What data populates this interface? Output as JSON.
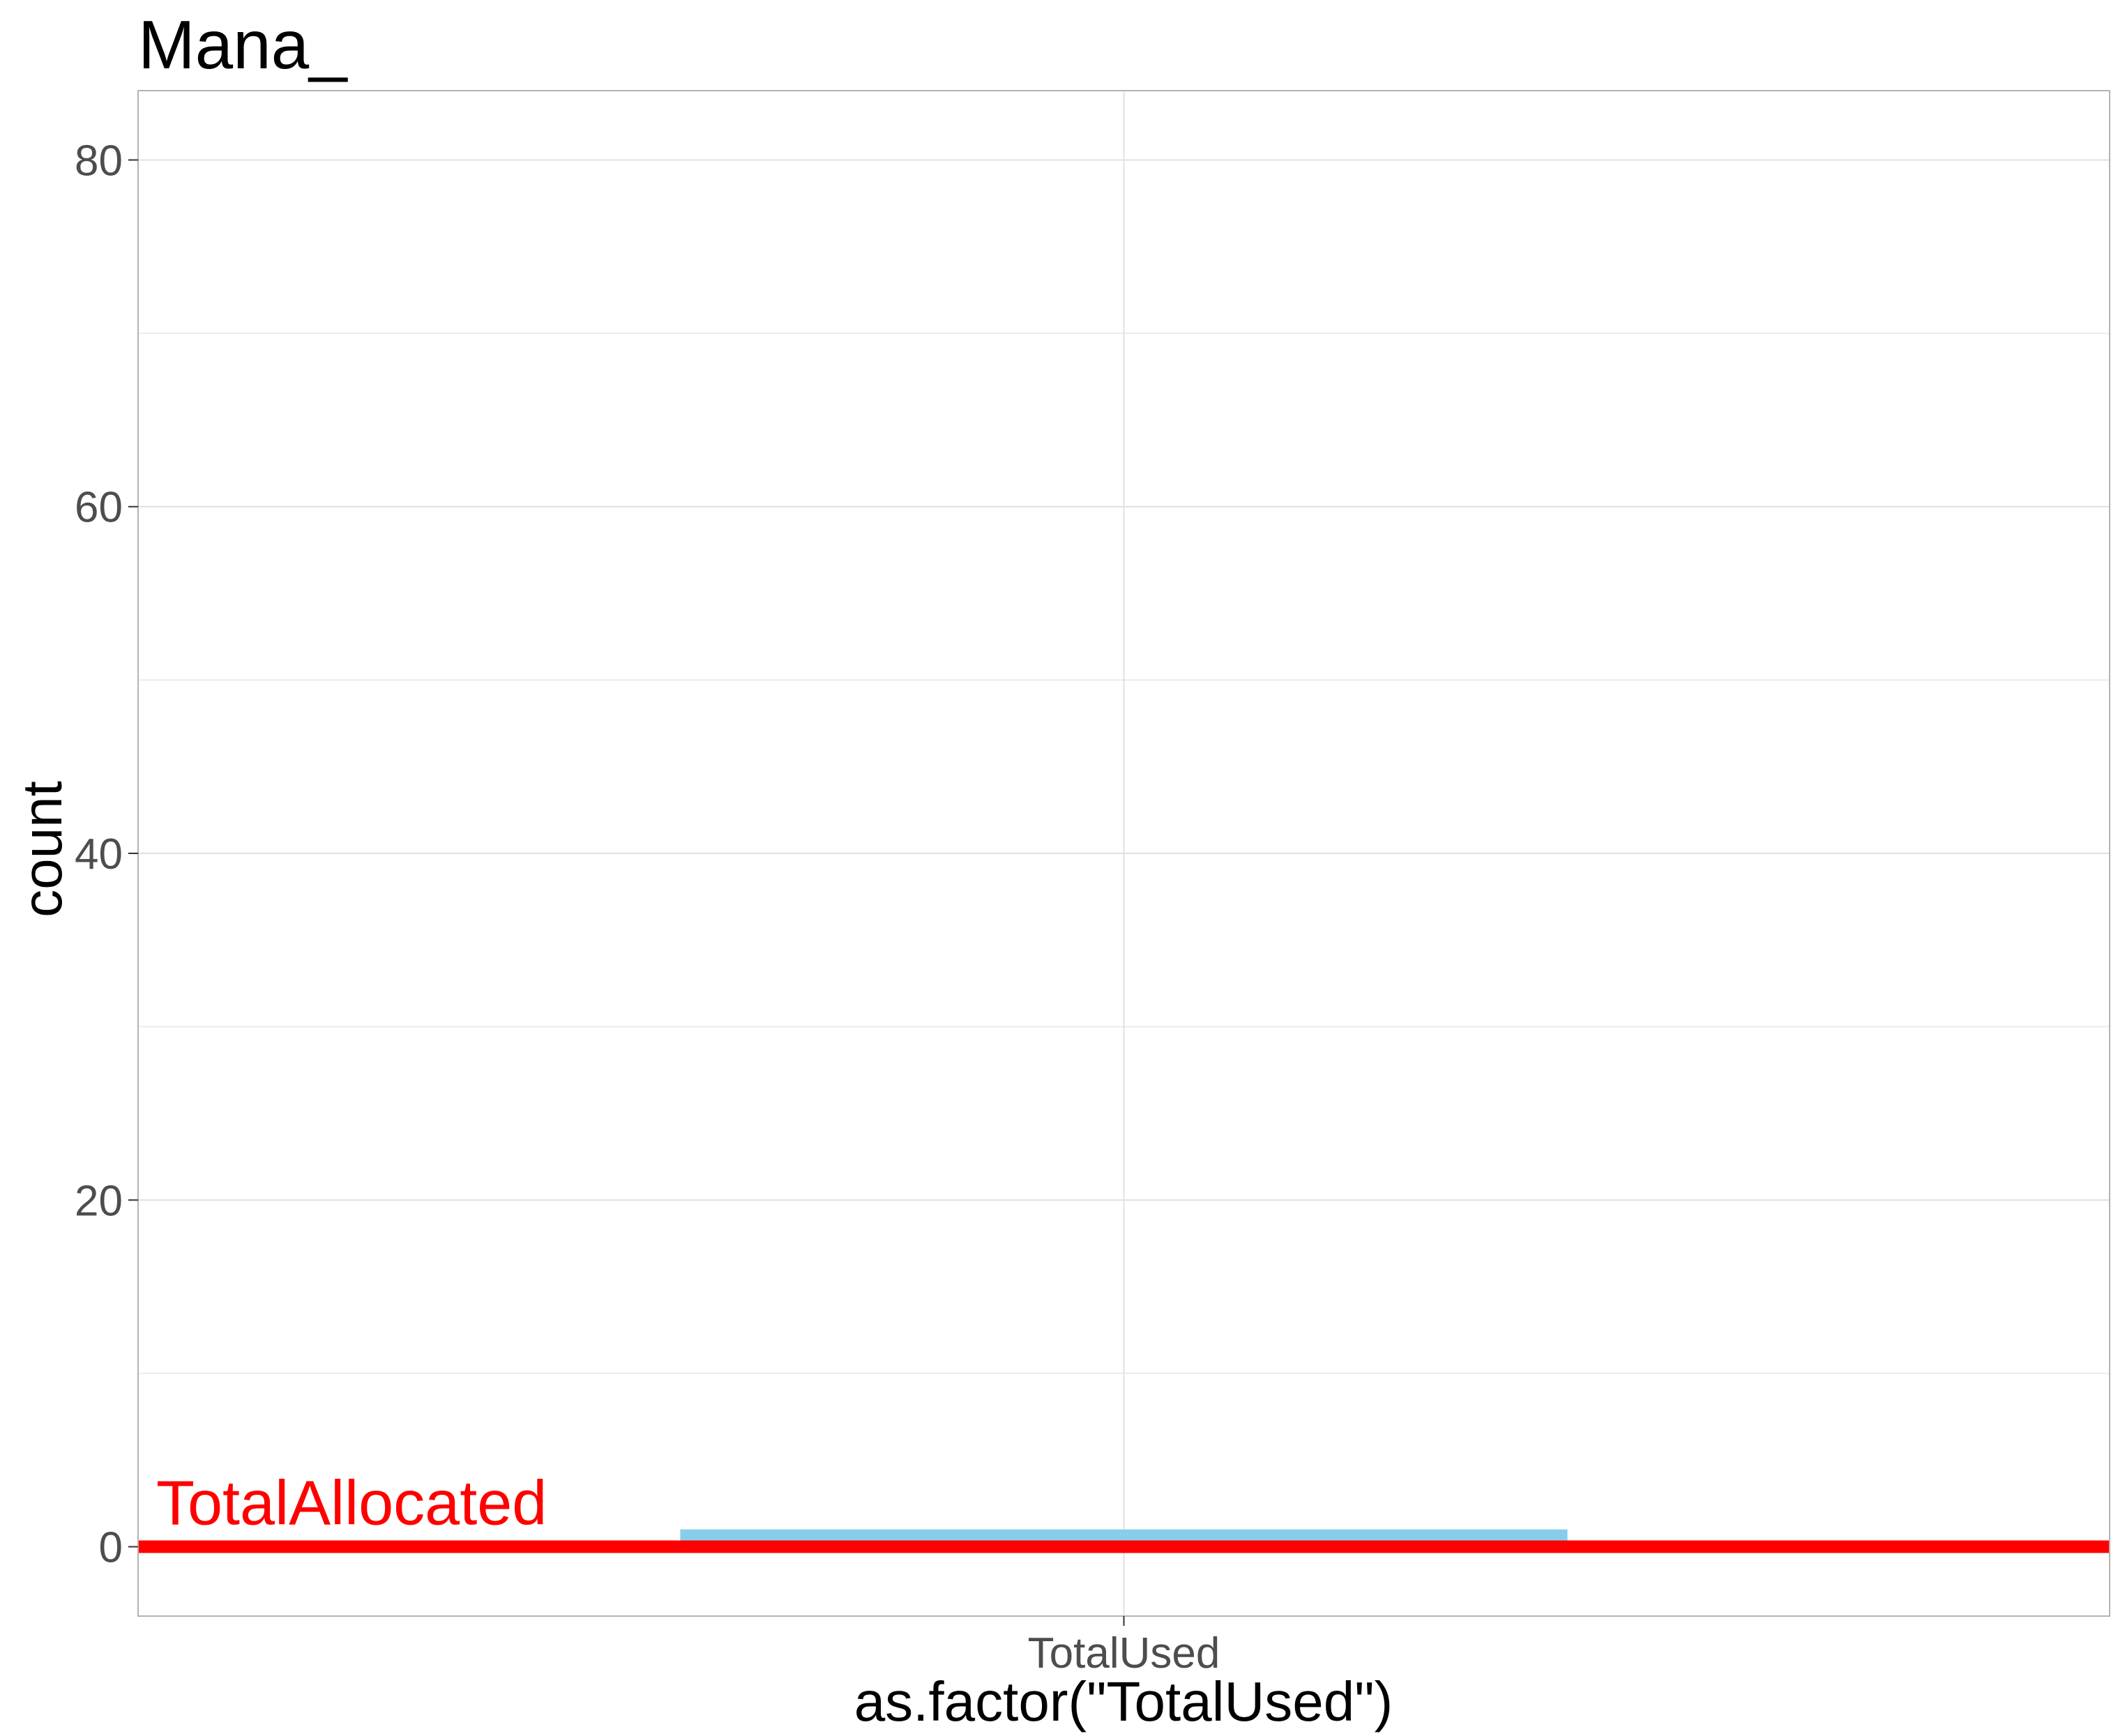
{
  "chart_data": {
    "type": "bar",
    "title": "Mana_",
    "xlabel": "as.factor(\"TotalUsed\")",
    "ylabel": "count",
    "categories": [
      "TotalUsed"
    ],
    "values": [
      1
    ],
    "ylim": [
      -4,
      84
    ],
    "yticks": [
      0,
      20,
      40,
      60,
      80
    ],
    "yticks_minor": [
      10,
      30,
      50,
      70
    ],
    "grid": true,
    "bar_color": "#87CEEB",
    "reference_line": {
      "y": 0,
      "label": "TotalAllocated",
      "color": "#FF0000"
    }
  }
}
